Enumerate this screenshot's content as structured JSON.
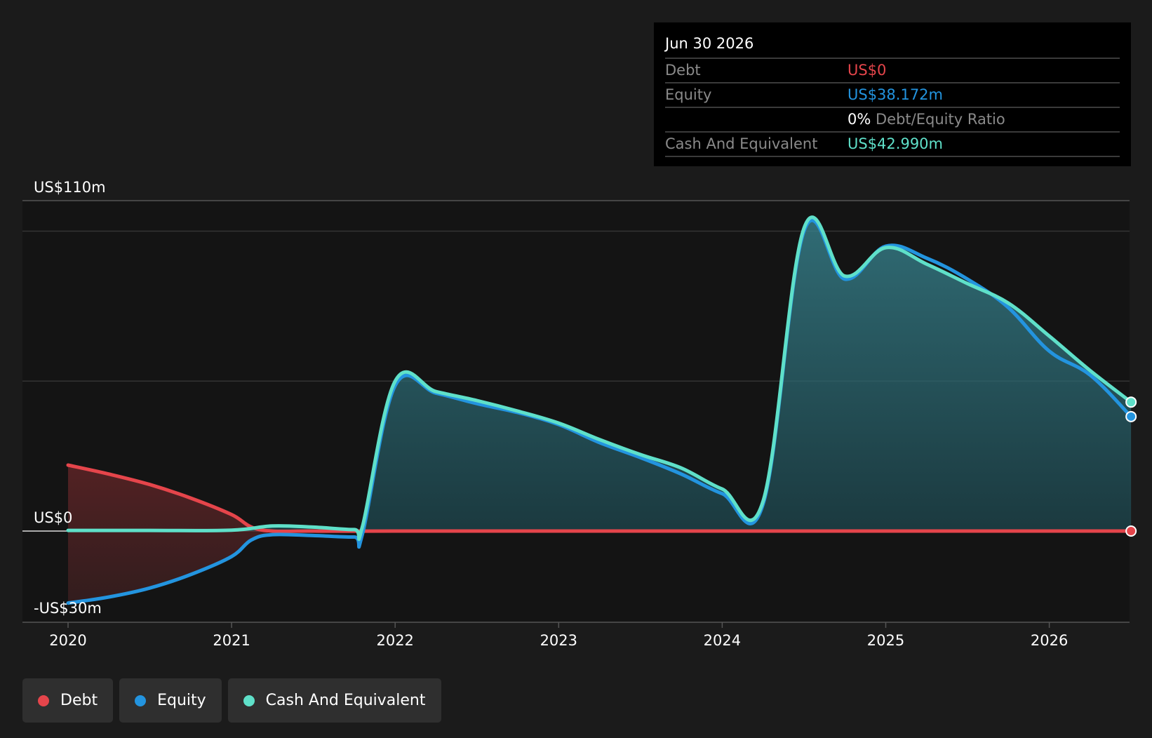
{
  "chart_data": {
    "type": "area",
    "y_axis_labels": [
      "US$110m",
      "US$0",
      "-US$30m"
    ],
    "ylim": [
      -30,
      110
    ],
    "x_ticks": [
      2020,
      2021,
      2022,
      2023,
      2024,
      2025,
      2026
    ],
    "xlim": [
      2019.72,
      2026.5
    ],
    "gridlines": [
      100,
      50
    ],
    "series": [
      {
        "name": "Debt",
        "color": "#e5454b",
        "points": [
          [
            2020.0,
            22
          ],
          [
            2020.25,
            19
          ],
          [
            2020.5,
            15.5
          ],
          [
            2020.75,
            11
          ],
          [
            2021.0,
            5.5
          ],
          [
            2021.17,
            0.5
          ],
          [
            2021.5,
            0
          ],
          [
            2022.0,
            0
          ],
          [
            2023.0,
            0
          ],
          [
            2024.0,
            0
          ],
          [
            2025.0,
            0
          ],
          [
            2026.0,
            0
          ],
          [
            2026.5,
            0
          ]
        ]
      },
      {
        "name": "Equity",
        "color": "#2394df",
        "points": [
          [
            2020.0,
            -24
          ],
          [
            2020.25,
            -22
          ],
          [
            2020.5,
            -19
          ],
          [
            2020.75,
            -14.5
          ],
          [
            2021.0,
            -8.5
          ],
          [
            2021.12,
            -3
          ],
          [
            2021.25,
            -1.2
          ],
          [
            2021.5,
            -1.5
          ],
          [
            2021.75,
            -2
          ],
          [
            2021.8,
            -1
          ],
          [
            2022.0,
            48.5
          ],
          [
            2022.25,
            46
          ],
          [
            2022.5,
            42.5
          ],
          [
            2022.75,
            39.5
          ],
          [
            2023.0,
            35.5
          ],
          [
            2023.25,
            29.5
          ],
          [
            2023.5,
            24.5
          ],
          [
            2023.75,
            19
          ],
          [
            2024.0,
            12.5
          ],
          [
            2024.25,
            9
          ],
          [
            2024.5,
            100
          ],
          [
            2024.75,
            84
          ],
          [
            2025.0,
            95
          ],
          [
            2025.25,
            91
          ],
          [
            2025.5,
            84
          ],
          [
            2025.75,
            74.5
          ],
          [
            2026.0,
            60
          ],
          [
            2026.25,
            52
          ],
          [
            2026.5,
            38.172
          ]
        ]
      },
      {
        "name": "Cash And Equivalent",
        "color": "#5fe0c9",
        "points": [
          [
            2020.0,
            0.2
          ],
          [
            2020.5,
            0.2
          ],
          [
            2021.0,
            0.3
          ],
          [
            2021.25,
            1.7
          ],
          [
            2021.5,
            1.3
          ],
          [
            2021.75,
            0.5
          ],
          [
            2021.8,
            1.5
          ],
          [
            2022.0,
            50
          ],
          [
            2022.25,
            46.5
          ],
          [
            2022.5,
            43.5
          ],
          [
            2022.75,
            40
          ],
          [
            2023.0,
            36
          ],
          [
            2023.25,
            30.5
          ],
          [
            2023.5,
            25.5
          ],
          [
            2023.75,
            21
          ],
          [
            2024.0,
            14
          ],
          [
            2024.25,
            10
          ],
          [
            2024.5,
            101
          ],
          [
            2024.75,
            85
          ],
          [
            2025.0,
            94.5
          ],
          [
            2025.25,
            89
          ],
          [
            2025.5,
            82.5
          ],
          [
            2025.75,
            76
          ],
          [
            2026.0,
            65
          ],
          [
            2026.25,
            53.5
          ],
          [
            2026.5,
            42.99
          ]
        ]
      }
    ]
  },
  "tooltip": {
    "date": "Jun 30 2026",
    "debt_label": "Debt",
    "debt_value": "US$0",
    "equity_label": "Equity",
    "equity_value": "US$38.172m",
    "ratio_value": "0%",
    "ratio_label": "Debt/Equity Ratio",
    "cash_label": "Cash And Equivalent",
    "cash_value": "US$42.990m"
  },
  "legend": {
    "items": [
      {
        "label": "Debt",
        "color": "#e5454b"
      },
      {
        "label": "Equity",
        "color": "#2394df"
      },
      {
        "label": "Cash And Equivalent",
        "color": "#5fe0c9"
      }
    ]
  },
  "colors": {
    "background": "#1b1b1b",
    "plot_past": "#1b1b1b",
    "debt": "#e5454b",
    "equity": "#2394df",
    "cash": "#5fe0c9"
  }
}
